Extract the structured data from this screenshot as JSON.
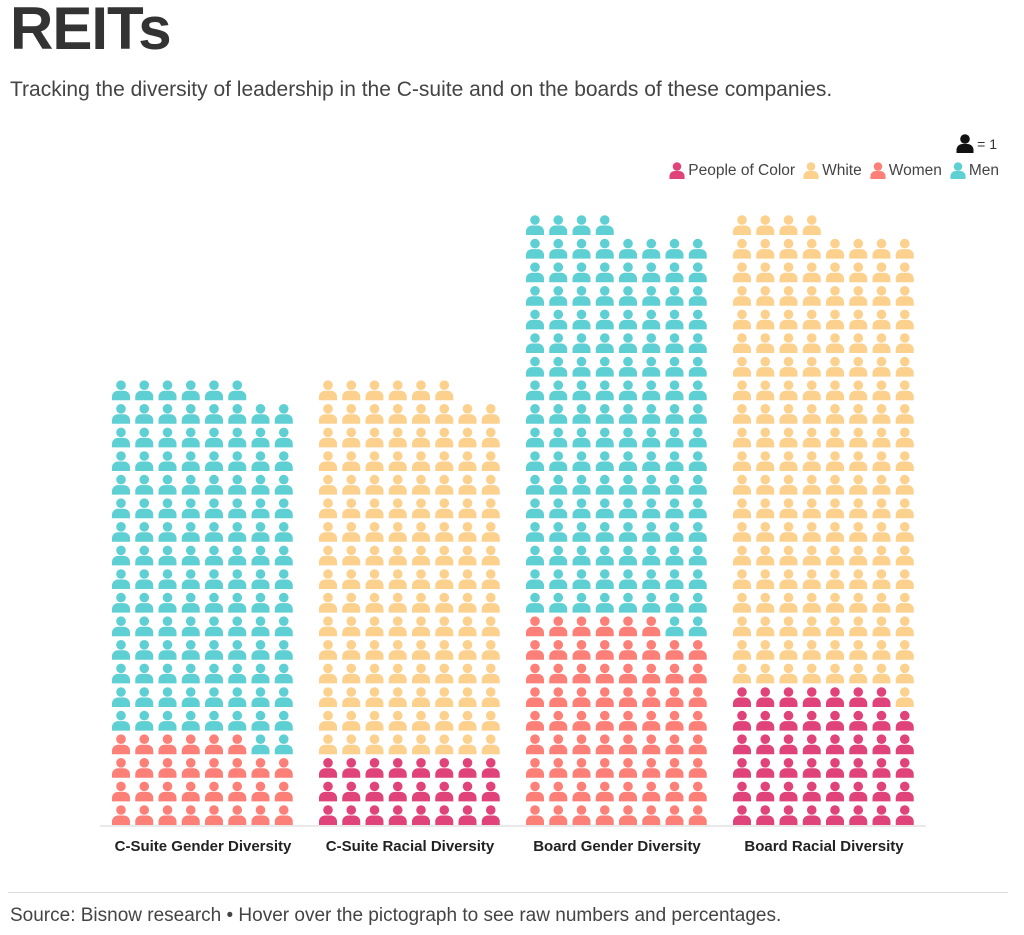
{
  "header": {
    "title": "REITs",
    "subtitle": "Tracking the diversity of leadership in the C-suite and on the boards of these companies."
  },
  "unit_legend": {
    "icon": "person-icon",
    "label": "= 1",
    "color": "#111111"
  },
  "legend": [
    {
      "label": "People of Color",
      "color": "#e0427a"
    },
    {
      "label": "White",
      "color": "#fcd08d"
    },
    {
      "label": "Women",
      "color": "#fc7f78"
    },
    {
      "label": "Men",
      "color": "#5ecfd3"
    }
  ],
  "chart_data": {
    "type": "pictograph",
    "unit": "1 person per icon",
    "columns_per_group": 8,
    "groups": [
      {
        "label": "C-Suite Gender Diversity",
        "segments": [
          {
            "name": "Women",
            "value": 30,
            "color": "#fc7f78"
          },
          {
            "name": "Men",
            "value": 120,
            "color": "#5ecfd3"
          }
        ]
      },
      {
        "label": "C-Suite Racial Diversity",
        "segments": [
          {
            "name": "People of Color",
            "value": 24,
            "color": "#e0427a"
          },
          {
            "name": "White",
            "value": 126,
            "color": "#fcd08d"
          }
        ]
      },
      {
        "label": "Board Gender Diversity",
        "segments": [
          {
            "name": "Women",
            "value": 70,
            "color": "#fc7f78"
          },
          {
            "name": "Men",
            "value": 134,
            "color": "#5ecfd3"
          }
        ]
      },
      {
        "label": "Board Racial Diversity",
        "segments": [
          {
            "name": "People of Color",
            "value": 47,
            "color": "#e0427a"
          },
          {
            "name": "White",
            "value": 157,
            "color": "#fcd08d"
          }
        ]
      }
    ]
  },
  "footer": {
    "source": "Source: Bisnow research • Hover over the pictograph to see raw numbers and percentages."
  }
}
